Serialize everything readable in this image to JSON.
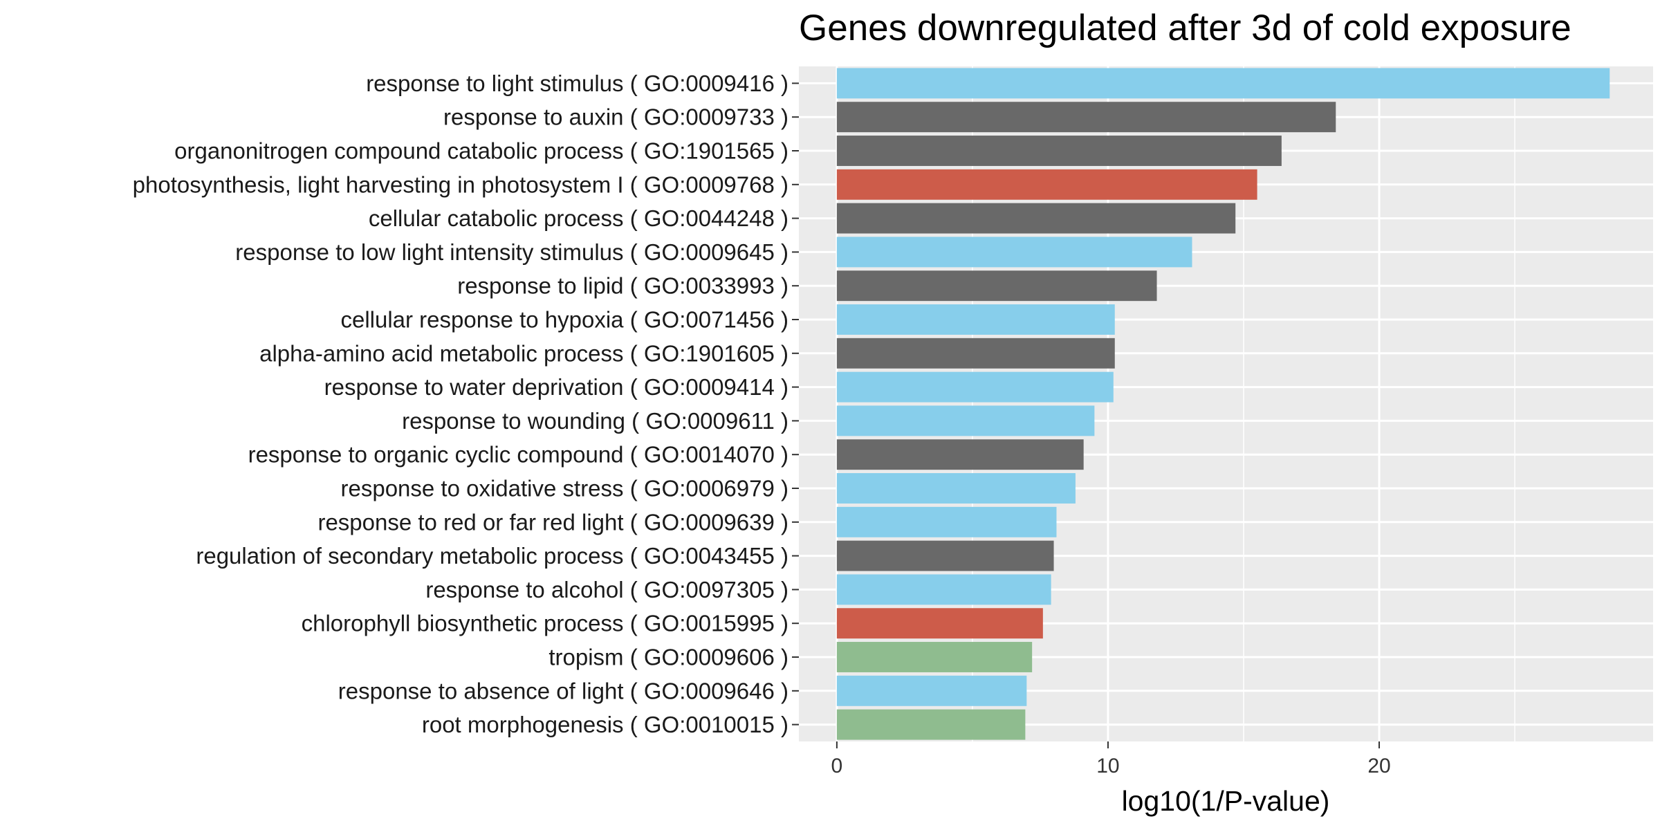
{
  "chart_data": {
    "type": "bar",
    "orientation": "horizontal",
    "title": "Genes downregulated after 3d of cold exposure",
    "xlabel": "log10(1/P-value)",
    "ylabel": "",
    "xlim": [
      -1.4,
      30.1
    ],
    "xticks": [
      0,
      10,
      20
    ],
    "grid": true,
    "legend": "none",
    "panel_background": "#EBEBEB",
    "categories": [
      "response to light stimulus ( GO:0009416 )",
      "response to auxin ( GO:0009733 )",
      "organonitrogen compound catabolic process ( GO:1901565 )",
      "photosynthesis, light harvesting in photosystem I ( GO:0009768 )",
      "cellular catabolic process ( GO:0044248 )",
      "response to low light intensity stimulus ( GO:0009645 )",
      "response to lipid ( GO:0033993 )",
      "cellular response to hypoxia ( GO:0071456 )",
      "alpha-amino acid metabolic process ( GO:1901605 )",
      "response to water deprivation ( GO:0009414 )",
      "response to wounding ( GO:0009611 )",
      "response to organic cyclic compound ( GO:0014070 )",
      "response to oxidative stress ( GO:0006979 )",
      "response to red or far red light ( GO:0009639 )",
      "regulation of secondary metabolic process ( GO:0043455 )",
      "response to alcohol ( GO:0097305 )",
      "chlorophyll biosynthetic process ( GO:0015995 )",
      "tropism ( GO:0009606 )",
      "response to absence of light ( GO:0009646 )",
      "root morphogenesis ( GO:0010015 )"
    ],
    "values": [
      28.5,
      18.4,
      16.4,
      15.5,
      14.7,
      13.1,
      11.8,
      10.25,
      10.25,
      10.2,
      9.5,
      9.1,
      8.8,
      8.1,
      8.0,
      7.9,
      7.6,
      7.2,
      7.0,
      6.95
    ],
    "colors": [
      "#87CEEB",
      "#696969",
      "#696969",
      "#CD5C4A",
      "#696969",
      "#87CEEB",
      "#696969",
      "#87CEEB",
      "#696969",
      "#87CEEB",
      "#87CEEB",
      "#696969",
      "#87CEEB",
      "#87CEEB",
      "#696969",
      "#87CEEB",
      "#CD5C4A",
      "#8FBC8F",
      "#87CEEB",
      "#8FBC8F"
    ]
  }
}
